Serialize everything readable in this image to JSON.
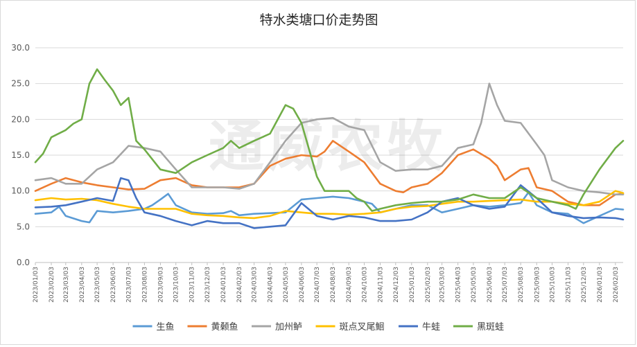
{
  "chart_data": {
    "type": "line",
    "title": "特水类塘口价走势图",
    "watermark": "通威农牧",
    "ylim": [
      0,
      30
    ],
    "yticks": [
      "0.0",
      "5.0",
      "10.0",
      "15.0",
      "20.0",
      "25.0",
      "30.0"
    ],
    "grid": "horizontal",
    "legend_position": "bottom",
    "x_labels": [
      "2023/01/03",
      "2023/02/03",
      "2023/03/03",
      "2023/04/03",
      "2023/05/03",
      "2023/06/03",
      "2023/07/03",
      "2023/08/03",
      "2023/09/03",
      "2023/10/03",
      "2023/11/03",
      "2023/12/03",
      "2024/01/03",
      "2024/02/03",
      "2024/03/03",
      "2024/04/03",
      "2024/05/03",
      "2024/06/03",
      "2024/07/03",
      "2024/08/03",
      "2024/09/03",
      "2024/10/03",
      "2024/11/03",
      "2024/12/03",
      "2025/01/03",
      "2025/02/03",
      "2025/03/03",
      "2025/04/03",
      "2025/05/03",
      "2025/06/03",
      "2025/07/03",
      "2025/08/03",
      "2025/09/03",
      "2025/10/03",
      "2025/11/03",
      "2025/12/03",
      "2026/01/03",
      "2026/02/03"
    ],
    "series": [
      {
        "name": "生鱼",
        "color": "#5b9bd5",
        "points": [
          [
            "2023/01/03",
            6.8
          ],
          [
            "2023/02/03",
            7.0
          ],
          [
            "2023/02/18",
            7.8
          ],
          [
            "2023/03/03",
            6.5
          ],
          [
            "2023/04/03",
            5.8
          ],
          [
            "2023/04/18",
            5.6
          ],
          [
            "2023/05/03",
            7.2
          ],
          [
            "2023/06/03",
            7.0
          ],
          [
            "2023/07/03",
            7.2
          ],
          [
            "2023/08/03",
            7.5
          ],
          [
            "2023/08/18",
            8.0
          ],
          [
            "2023/09/03",
            8.8
          ],
          [
            "2023/09/18",
            9.6
          ],
          [
            "2023/10/03",
            8.0
          ],
          [
            "2023/11/03",
            7.0
          ],
          [
            "2023/12/03",
            6.8
          ],
          [
            "2024/01/03",
            6.9
          ],
          [
            "2024/01/18",
            7.2
          ],
          [
            "2024/02/03",
            6.6
          ],
          [
            "2024/03/03",
            6.8
          ],
          [
            "2024/04/03",
            6.9
          ],
          [
            "2024/05/03",
            7.0
          ],
          [
            "2024/06/03",
            8.8
          ],
          [
            "2024/07/03",
            9.0
          ],
          [
            "2024/08/03",
            9.2
          ],
          [
            "2024/09/03",
            9.0
          ],
          [
            "2024/10/03",
            8.5
          ],
          [
            "2024/10/18",
            8.2
          ],
          [
            "2024/11/03",
            7.0
          ],
          [
            "2024/12/03",
            7.5
          ],
          [
            "2025/01/03",
            8.0
          ],
          [
            "2025/02/03",
            8.0
          ],
          [
            "2025/03/03",
            7.0
          ],
          [
            "2025/04/03",
            7.5
          ],
          [
            "2025/05/03",
            8.0
          ],
          [
            "2025/06/03",
            7.8
          ],
          [
            "2025/07/03",
            8.0
          ],
          [
            "2025/08/03",
            8.3
          ],
          [
            "2025/08/18",
            9.8
          ],
          [
            "2025/09/03",
            8.0
          ],
          [
            "2025/10/03",
            7.0
          ],
          [
            "2025/11/03",
            6.8
          ],
          [
            "2025/12/03",
            5.5
          ],
          [
            "2026/01/03",
            6.5
          ],
          [
            "2026/02/03",
            7.5
          ],
          [
            "2026/02/18",
            7.4
          ]
        ]
      },
      {
        "name": "黄颡鱼",
        "color": "#ed7d31",
        "points": [
          [
            "2023/01/03",
            10.0
          ],
          [
            "2023/02/03",
            11.0
          ],
          [
            "2023/03/03",
            11.8
          ],
          [
            "2023/04/03",
            11.2
          ],
          [
            "2023/05/03",
            10.8
          ],
          [
            "2023/06/03",
            10.5
          ],
          [
            "2023/07/03",
            10.2
          ],
          [
            "2023/08/03",
            10.3
          ],
          [
            "2023/09/03",
            11.5
          ],
          [
            "2023/10/03",
            11.8
          ],
          [
            "2023/11/03",
            10.8
          ],
          [
            "2023/12/03",
            10.5
          ],
          [
            "2024/01/03",
            10.5
          ],
          [
            "2024/02/03",
            10.5
          ],
          [
            "2024/03/03",
            11.0
          ],
          [
            "2024/04/03",
            13.5
          ],
          [
            "2024/05/03",
            14.5
          ],
          [
            "2024/06/03",
            15.0
          ],
          [
            "2024/07/03",
            14.8
          ],
          [
            "2024/07/18",
            15.5
          ],
          [
            "2024/08/03",
            17.0
          ],
          [
            "2024/09/03",
            15.5
          ],
          [
            "2024/10/03",
            14.0
          ],
          [
            "2024/11/03",
            11.0
          ],
          [
            "2024/12/03",
            10.0
          ],
          [
            "2024/12/18",
            9.8
          ],
          [
            "2025/01/03",
            10.5
          ],
          [
            "2025/02/03",
            11.0
          ],
          [
            "2025/03/03",
            12.5
          ],
          [
            "2025/04/03",
            15.0
          ],
          [
            "2025/05/03",
            15.8
          ],
          [
            "2025/06/03",
            14.5
          ],
          [
            "2025/06/18",
            13.5
          ],
          [
            "2025/07/03",
            11.5
          ],
          [
            "2025/08/03",
            13.0
          ],
          [
            "2025/08/18",
            13.2
          ],
          [
            "2025/09/03",
            10.5
          ],
          [
            "2025/10/03",
            10.0
          ],
          [
            "2025/11/03",
            8.5
          ],
          [
            "2025/12/03",
            8.0
          ],
          [
            "2026/01/03",
            8.0
          ],
          [
            "2026/02/03",
            9.5
          ],
          [
            "2026/02/18",
            9.6
          ]
        ]
      },
      {
        "name": "加州鲈",
        "color": "#a5a5a5",
        "points": [
          [
            "2023/01/03",
            11.5
          ],
          [
            "2023/02/03",
            11.8
          ],
          [
            "2023/03/03",
            11.0
          ],
          [
            "2023/04/03",
            11.0
          ],
          [
            "2023/05/03",
            13.0
          ],
          [
            "2023/06/03",
            14.0
          ],
          [
            "2023/07/03",
            16.3
          ],
          [
            "2023/08/03",
            16.0
          ],
          [
            "2023/09/03",
            15.5
          ],
          [
            "2023/10/03",
            13.0
          ],
          [
            "2023/11/03",
            10.5
          ],
          [
            "2023/12/03",
            10.5
          ],
          [
            "2024/01/03",
            10.5
          ],
          [
            "2024/02/03",
            10.3
          ],
          [
            "2024/03/03",
            11.0
          ],
          [
            "2024/04/03",
            14.0
          ],
          [
            "2024/05/03",
            17.0
          ],
          [
            "2024/06/03",
            19.5
          ],
          [
            "2024/07/03",
            20.0
          ],
          [
            "2024/08/03",
            20.2
          ],
          [
            "2024/09/03",
            19.0
          ],
          [
            "2024/10/03",
            18.5
          ],
          [
            "2024/11/03",
            14.0
          ],
          [
            "2024/12/03",
            12.8
          ],
          [
            "2025/01/03",
            13.0
          ],
          [
            "2025/02/03",
            13.0
          ],
          [
            "2025/03/03",
            13.5
          ],
          [
            "2025/04/03",
            16.0
          ],
          [
            "2025/05/03",
            16.5
          ],
          [
            "2025/05/18",
            19.5
          ],
          [
            "2025/06/03",
            25.0
          ],
          [
            "2025/06/18",
            22.0
          ],
          [
            "2025/07/03",
            19.8
          ],
          [
            "2025/08/03",
            19.5
          ],
          [
            "2025/09/03",
            16.5
          ],
          [
            "2025/09/18",
            15.0
          ],
          [
            "2025/10/03",
            11.5
          ],
          [
            "2025/11/03",
            10.5
          ],
          [
            "2025/12/03",
            10.0
          ],
          [
            "2026/01/03",
            9.8
          ],
          [
            "2026/02/03",
            9.5
          ],
          [
            "2026/02/18",
            9.5
          ]
        ]
      },
      {
        "name": "斑点叉尾鮰",
        "color": "#ffc000",
        "points": [
          [
            "2023/01/03",
            8.7
          ],
          [
            "2023/02/03",
            9.0
          ],
          [
            "2023/03/03",
            8.8
          ],
          [
            "2023/04/03",
            8.9
          ],
          [
            "2023/05/03",
            8.7
          ],
          [
            "2023/06/03",
            8.2
          ],
          [
            "2023/07/03",
            7.8
          ],
          [
            "2023/08/03",
            7.5
          ],
          [
            "2023/09/03",
            7.5
          ],
          [
            "2023/10/03",
            7.5
          ],
          [
            "2023/11/03",
            6.8
          ],
          [
            "2023/12/03",
            6.6
          ],
          [
            "2024/01/03",
            6.5
          ],
          [
            "2024/02/03",
            6.3
          ],
          [
            "2024/03/03",
            6.2
          ],
          [
            "2024/04/03",
            6.5
          ],
          [
            "2024/05/03",
            7.2
          ],
          [
            "2024/06/03",
            7.0
          ],
          [
            "2024/07/03",
            6.8
          ],
          [
            "2024/08/03",
            6.8
          ],
          [
            "2024/09/03",
            6.7
          ],
          [
            "2024/10/03",
            6.8
          ],
          [
            "2024/11/03",
            7.0
          ],
          [
            "2024/12/03",
            7.5
          ],
          [
            "2025/01/03",
            7.8
          ],
          [
            "2025/02/03",
            7.9
          ],
          [
            "2025/03/03",
            8.2
          ],
          [
            "2025/04/03",
            8.5
          ],
          [
            "2025/05/03",
            8.5
          ],
          [
            "2025/06/03",
            8.6
          ],
          [
            "2025/07/03",
            8.7
          ],
          [
            "2025/08/03",
            8.8
          ],
          [
            "2025/09/03",
            8.5
          ],
          [
            "2025/10/03",
            8.5
          ],
          [
            "2025/11/03",
            8.2
          ],
          [
            "2025/12/03",
            8.0
          ],
          [
            "2026/01/03",
            8.5
          ],
          [
            "2026/02/03",
            10.0
          ],
          [
            "2026/02/18",
            9.7
          ]
        ]
      },
      {
        "name": "牛蛙",
        "color": "#4472c4",
        "points": [
          [
            "2023/01/03",
            7.7
          ],
          [
            "2023/02/03",
            7.8
          ],
          [
            "2023/03/03",
            8.0
          ],
          [
            "2023/04/03",
            8.5
          ],
          [
            "2023/05/03",
            9.0
          ],
          [
            "2023/06/03",
            8.6
          ],
          [
            "2023/06/18",
            11.8
          ],
          [
            "2023/07/03",
            11.5
          ],
          [
            "2023/07/18",
            9.0
          ],
          [
            "2023/08/03",
            7.0
          ],
          [
            "2023/09/03",
            6.5
          ],
          [
            "2023/10/03",
            5.8
          ],
          [
            "2023/11/03",
            5.2
          ],
          [
            "2023/12/03",
            5.8
          ],
          [
            "2024/01/03",
            5.5
          ],
          [
            "2024/02/03",
            5.5
          ],
          [
            "2024/03/03",
            4.8
          ],
          [
            "2024/04/03",
            5.0
          ],
          [
            "2024/05/03",
            5.2
          ],
          [
            "2024/06/03",
            8.3
          ],
          [
            "2024/07/03",
            6.5
          ],
          [
            "2024/08/03",
            6.0
          ],
          [
            "2024/09/03",
            6.5
          ],
          [
            "2024/10/03",
            6.3
          ],
          [
            "2024/11/03",
            5.8
          ],
          [
            "2024/12/03",
            5.8
          ],
          [
            "2025/01/03",
            6.0
          ],
          [
            "2025/02/03",
            7.0
          ],
          [
            "2025/03/03",
            8.5
          ],
          [
            "2025/04/03",
            9.0
          ],
          [
            "2025/05/03",
            8.0
          ],
          [
            "2025/06/03",
            7.5
          ],
          [
            "2025/07/03",
            7.8
          ],
          [
            "2025/08/03",
            10.8
          ],
          [
            "2025/09/03",
            9.0
          ],
          [
            "2025/10/03",
            7.0
          ],
          [
            "2025/11/03",
            6.5
          ],
          [
            "2025/12/03",
            6.2
          ],
          [
            "2026/01/03",
            6.3
          ],
          [
            "2026/02/03",
            6.2
          ],
          [
            "2026/02/18",
            6.0
          ]
        ]
      },
      {
        "name": "黑斑蛙",
        "color": "#70ad47",
        "points": [
          [
            "2023/01/03",
            14.0
          ],
          [
            "2023/01/18",
            15.2
          ],
          [
            "2023/02/03",
            17.5
          ],
          [
            "2023/03/03",
            18.5
          ],
          [
            "2023/03/18",
            19.4
          ],
          [
            "2023/04/03",
            20.0
          ],
          [
            "2023/04/18",
            25.0
          ],
          [
            "2023/05/03",
            27.0
          ],
          [
            "2023/05/18",
            25.5
          ],
          [
            "2023/06/03",
            24.0
          ],
          [
            "2023/06/18",
            22.0
          ],
          [
            "2023/07/03",
            23.0
          ],
          [
            "2023/07/18",
            17.0
          ],
          [
            "2023/08/03",
            15.8
          ],
          [
            "2023/09/03",
            13.0
          ],
          [
            "2023/10/03",
            12.5
          ],
          [
            "2023/11/03",
            14.0
          ],
          [
            "2023/12/03",
            15.0
          ],
          [
            "2024/01/03",
            16.0
          ],
          [
            "2024/01/18",
            17.0
          ],
          [
            "2024/02/03",
            16.0
          ],
          [
            "2024/03/03",
            17.0
          ],
          [
            "2024/04/03",
            18.0
          ],
          [
            "2024/05/03",
            22.0
          ],
          [
            "2024/05/18",
            21.5
          ],
          [
            "2024/06/03",
            19.5
          ],
          [
            "2024/07/03",
            12.0
          ],
          [
            "2024/07/18",
            10.0
          ],
          [
            "2024/08/03",
            10.0
          ],
          [
            "2024/09/03",
            10.0
          ],
          [
            "2024/09/18",
            9.0
          ],
          [
            "2024/10/03",
            8.5
          ],
          [
            "2024/10/18",
            7.2
          ],
          [
            "2024/11/03",
            7.5
          ],
          [
            "2024/12/03",
            8.0
          ],
          [
            "2025/01/03",
            8.3
          ],
          [
            "2025/02/03",
            8.5
          ],
          [
            "2025/03/03",
            8.5
          ],
          [
            "2025/04/03",
            8.8
          ],
          [
            "2025/05/03",
            9.5
          ],
          [
            "2025/06/03",
            9.0
          ],
          [
            "2025/07/03",
            9.0
          ],
          [
            "2025/08/03",
            10.5
          ],
          [
            "2025/09/03",
            9.0
          ],
          [
            "2025/10/03",
            8.5
          ],
          [
            "2025/11/03",
            8.0
          ],
          [
            "2025/11/18",
            7.5
          ],
          [
            "2025/12/03",
            9.5
          ],
          [
            "2026/01/03",
            13.0
          ],
          [
            "2026/02/03",
            16.0
          ],
          [
            "2026/02/18",
            17.0
          ]
        ]
      }
    ]
  }
}
